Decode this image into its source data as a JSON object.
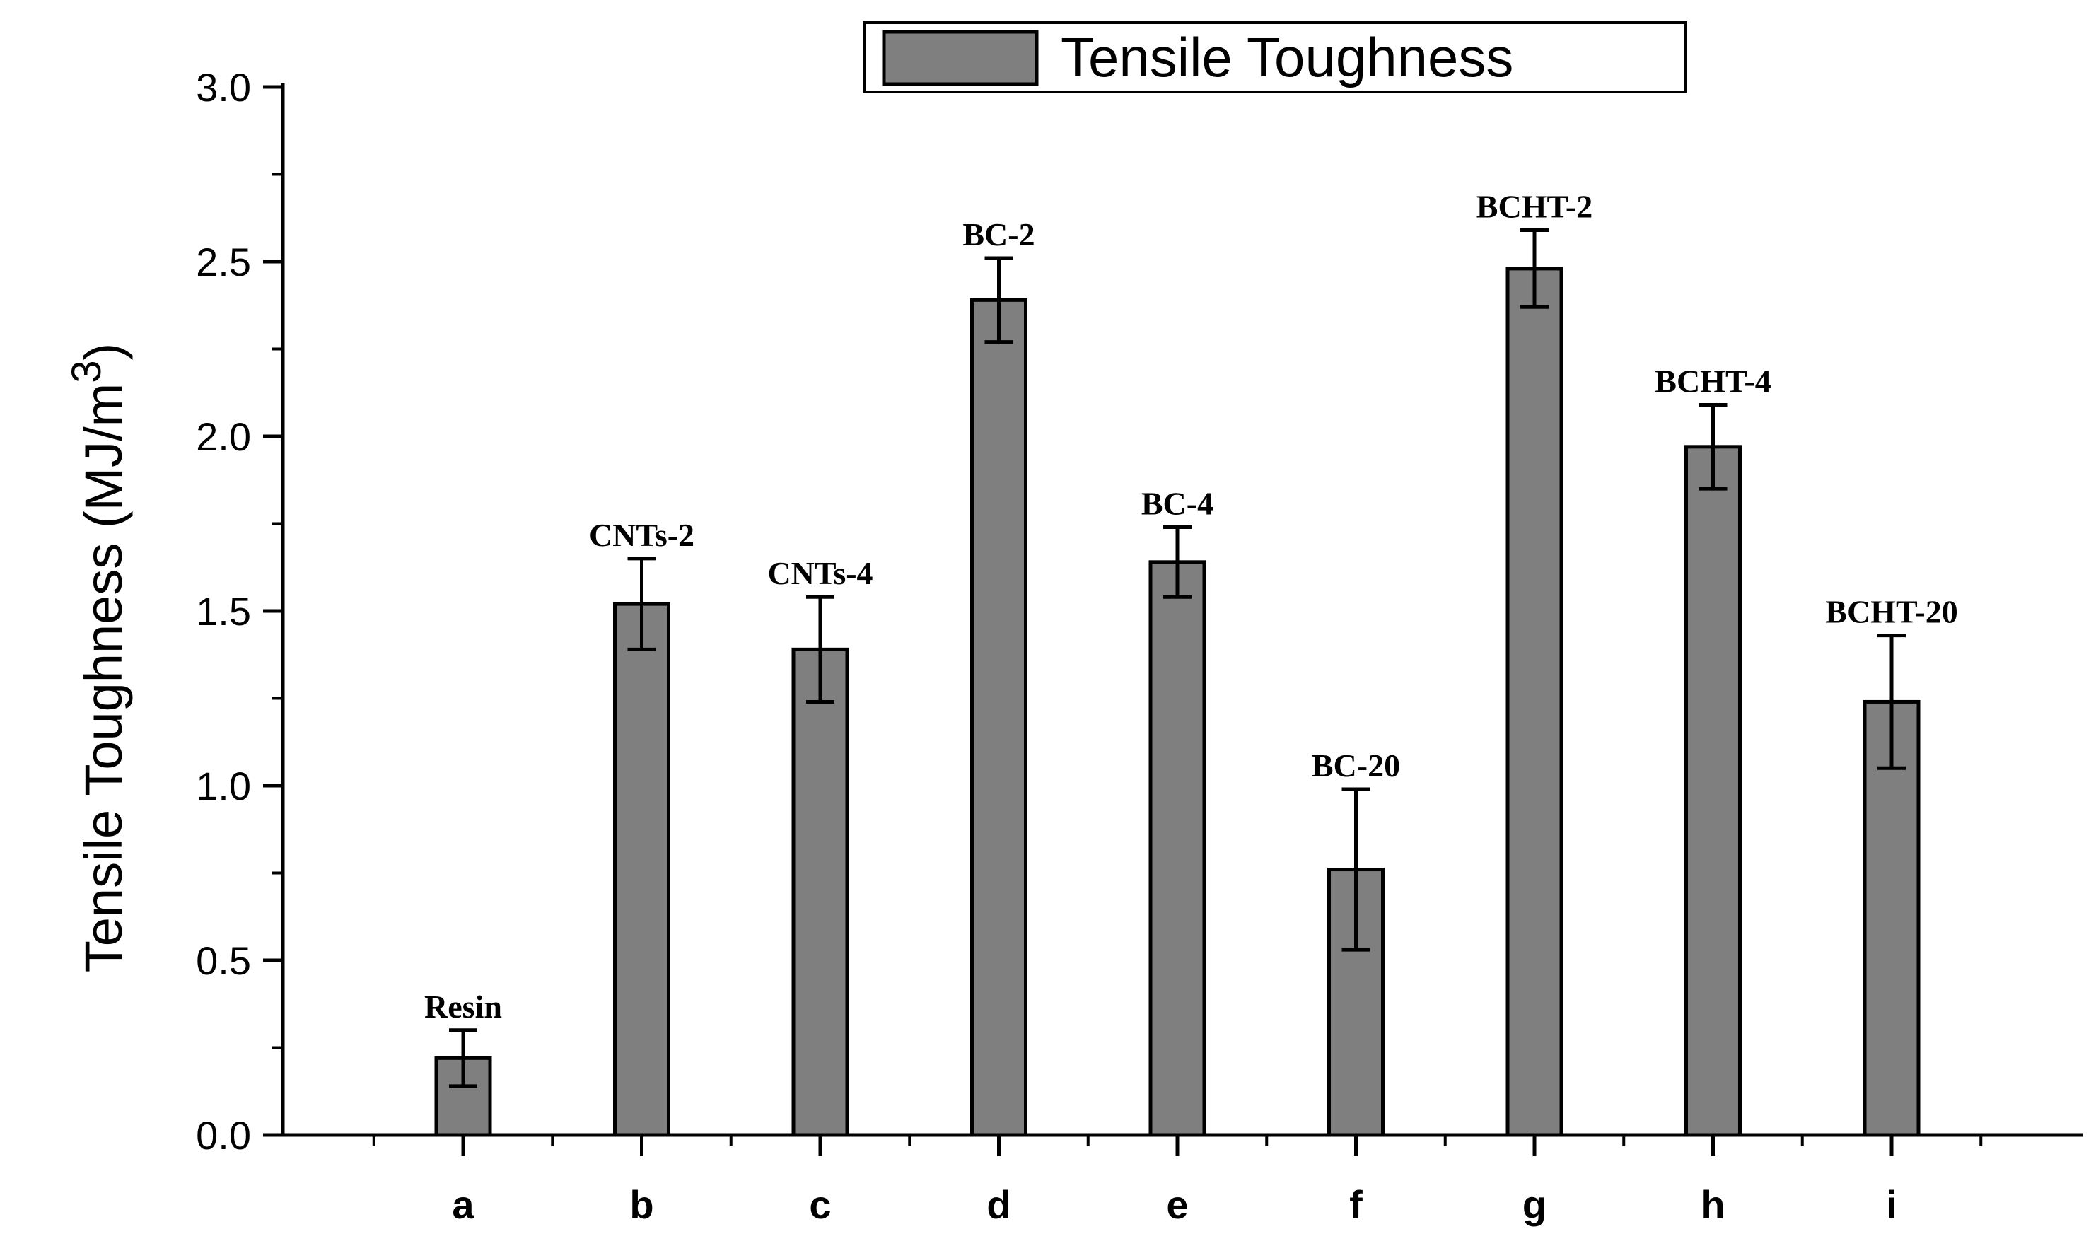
{
  "chart_data": {
    "type": "bar",
    "title": "",
    "legend": {
      "label": "Tensile Toughness",
      "position": "top-center"
    },
    "xlabel": "",
    "ylabel": "Tensile Toughness (MJ/m",
    "ylabel_superscript": "3",
    "ylabel_close": ")",
    "ylim": [
      0,
      3.0
    ],
    "yticks": [
      "0.0",
      "0.5",
      "1.0",
      "1.5",
      "2.0",
      "2.5",
      "3.0"
    ],
    "ytick_values": [
      0,
      0.5,
      1.0,
      1.5,
      2.0,
      2.5,
      3.0
    ],
    "categories": [
      "a",
      "b",
      "c",
      "d",
      "e",
      "f",
      "g",
      "h",
      "i"
    ],
    "bar_labels": [
      "Resin",
      "CNTs-2",
      "CNTs-4",
      "BC-2",
      "BC-4",
      "BC-20",
      "BCHT-2",
      "BCHT-4",
      "BCHT-20"
    ],
    "series": [
      {
        "name": "Tensile Toughness",
        "values": [
          0.22,
          1.52,
          1.39,
          2.39,
          1.64,
          0.76,
          2.48,
          1.97,
          1.24
        ],
        "errors": [
          0.08,
          0.13,
          0.15,
          0.12,
          0.1,
          0.23,
          0.11,
          0.12,
          0.19
        ]
      }
    ],
    "colors": {
      "bar_fill": "#7f7f7f",
      "bar_stroke": "#000000",
      "axis": "#000000"
    }
  }
}
